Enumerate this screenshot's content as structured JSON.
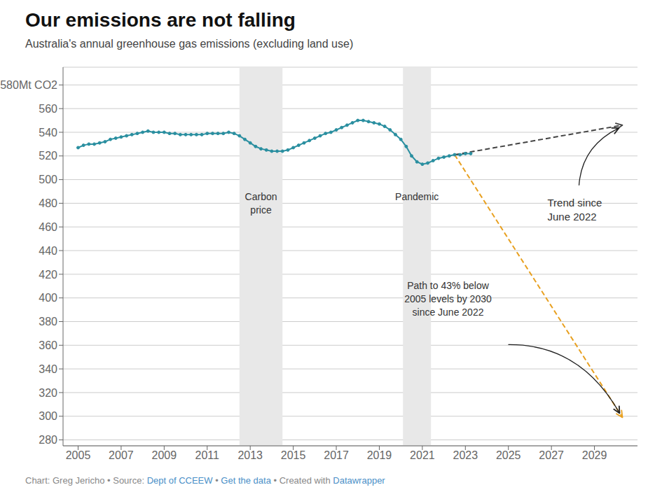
{
  "chart_data": {
    "type": "line",
    "title": "Our emissions are not falling",
    "subtitle": "Australia's annual greenhouse gas emissions (excluding land use)",
    "xlim": [
      2004.3,
      2031.0
    ],
    "xticks": [
      2005,
      2007,
      2009,
      2011,
      2013,
      2015,
      2017,
      2019,
      2021,
      2023,
      2025,
      2027,
      2029
    ],
    "ylim": [
      275,
      595
    ],
    "yticks": [
      280,
      300,
      320,
      340,
      360,
      380,
      400,
      420,
      440,
      460,
      480,
      500,
      520,
      540,
      560,
      {
        "value": 580,
        "label": "580Mt CO2"
      }
    ],
    "grid": true,
    "series": [
      {
        "x": [
          2005.0,
          2005.25,
          2005.5,
          2005.75,
          2006.0,
          2006.25,
          2006.5,
          2006.75,
          2007.0,
          2007.25,
          2007.5,
          2007.75,
          2008.0,
          2008.25,
          2008.5,
          2008.75,
          2009.0,
          2009.25,
          2009.5,
          2009.75,
          2010.0,
          2010.25,
          2010.5,
          2010.75,
          2011.0,
          2011.25,
          2011.5,
          2011.75,
          2012.0,
          2012.25,
          2012.5,
          2012.75,
          2013.0,
          2013.25,
          2013.5,
          2013.75,
          2014.0,
          2014.25,
          2014.5,
          2014.75,
          2015.0,
          2015.25,
          2015.5,
          2015.75,
          2016.0,
          2016.25,
          2016.5,
          2016.75,
          2017.0,
          2017.25,
          2017.5,
          2017.75,
          2018.0,
          2018.25,
          2018.5,
          2018.75,
          2019.0,
          2019.25,
          2019.5,
          2019.75,
          2020.0,
          2020.25,
          2020.5,
          2020.75,
          2021.0,
          2021.25,
          2021.5,
          2021.75,
          2022.0,
          2022.25,
          2022.5,
          2022.75,
          2023.0,
          2023.25
        ],
        "values": [
          527,
          529,
          530,
          530,
          531,
          532,
          534,
          535,
          536,
          537,
          538,
          539,
          540,
          541,
          540,
          540,
          540,
          539,
          539,
          538,
          538,
          538,
          538,
          538,
          539,
          539,
          539,
          539,
          540,
          539,
          537,
          534,
          531,
          528,
          526,
          525,
          524,
          524,
          524,
          525,
          527,
          529,
          531,
          533,
          535,
          537,
          539,
          540,
          542,
          544,
          546,
          548,
          550,
          550,
          549,
          548,
          547,
          545,
          542,
          538,
          534,
          528,
          520,
          515,
          513,
          514,
          516,
          518,
          519,
          520,
          521,
          521,
          522,
          522
        ],
        "color": "#2a8fa0",
        "marker": "o",
        "line_style": "solid"
      },
      {
        "x": [
          2022.5,
          2030.3
        ],
        "values": [
          521,
          546
        ],
        "color": "#444444",
        "marker": "none",
        "line_style": "dashed",
        "annotation": "Trend since\nJune 2022"
      },
      {
        "x": [
          2022.5,
          2030.3
        ],
        "values": [
          521,
          299
        ],
        "color": "#e8a020",
        "marker": "none",
        "line_style": "dashed",
        "annotation": "Path to 43% below\n2005 levels by 2030\nsince June 2022"
      }
    ],
    "shaded_regions": [
      {
        "x": [
          2012.5,
          2014.5
        ],
        "label": "Carbon\nprice",
        "color": "#e8e8e8"
      },
      {
        "x": [
          2020.1,
          2021.4
        ],
        "label": "Pandemic",
        "color": "#e8e8e8"
      }
    ],
    "footer": [
      {
        "text": "Chart: Greg Jericho • Source: "
      },
      {
        "text": "Dept of CCEEW",
        "color": "#4a8fc7"
      },
      {
        "text": " • "
      },
      {
        "text": "Get the data",
        "color": "#4a8fc7"
      },
      {
        "text": " • Created with "
      },
      {
        "text": "Datawrapper",
        "color": "#4a8fc7"
      }
    ]
  }
}
